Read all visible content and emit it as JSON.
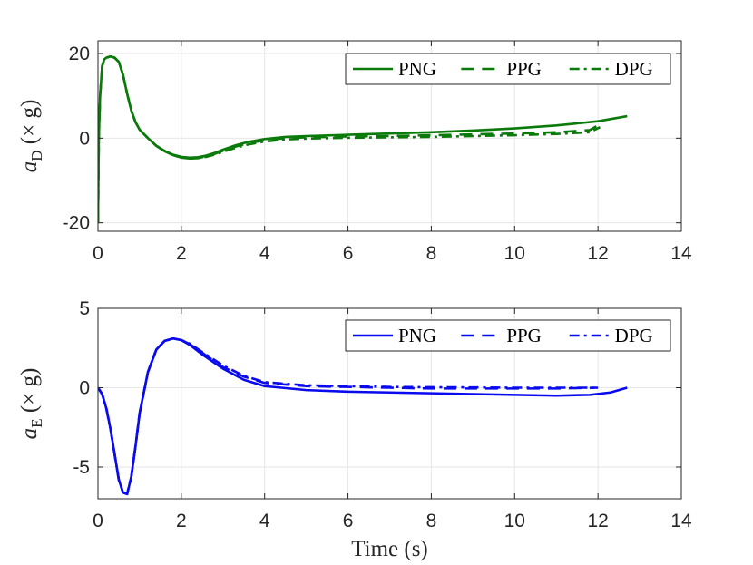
{
  "chart_data": [
    {
      "type": "line",
      "id": "top",
      "ylabel_main": "a",
      "ylabel_sub": "D",
      "ylabel_unit": "(× g)",
      "xlabel": "",
      "xlim": [
        0,
        14
      ],
      "ylim": [
        -22,
        23
      ],
      "xticks": [
        0,
        2,
        4,
        6,
        8,
        10,
        12,
        14
      ],
      "yticks": [
        -20,
        0,
        20
      ],
      "ytick_labels": [
        "-20",
        "0",
        "20"
      ],
      "grid": true,
      "legend_position": "top-right",
      "color": "#0a7a0a",
      "series": [
        {
          "name": "PNG",
          "style": "solid",
          "x": [
            0,
            0.02,
            0.05,
            0.1,
            0.15,
            0.2,
            0.3,
            0.4,
            0.5,
            0.6,
            0.7,
            0.8,
            0.9,
            1.0,
            1.2,
            1.4,
            1.6,
            1.8,
            2.0,
            2.2,
            2.4,
            2.6,
            2.8,
            3.0,
            3.3,
            3.6,
            4.0,
            4.5,
            5.0,
            6.0,
            7.0,
            8.0,
            9.0,
            10.0,
            11.0,
            12.0,
            12.7
          ],
          "y": [
            -20,
            0,
            10,
            17,
            18.6,
            19,
            19.3,
            19,
            18,
            15,
            10.5,
            6.5,
            3.8,
            2,
            0,
            -1.8,
            -3,
            -3.9,
            -4.4,
            -4.6,
            -4.5,
            -4.1,
            -3.5,
            -2.7,
            -1.7,
            -0.9,
            -0.2,
            0.3,
            0.5,
            0.8,
            1.1,
            1.4,
            1.8,
            2.3,
            3,
            4,
            5.2
          ]
        },
        {
          "name": "PPG",
          "style": "dashed",
          "x": [
            0,
            0.02,
            0.05,
            0.1,
            0.15,
            0.2,
            0.3,
            0.4,
            0.5,
            0.6,
            0.7,
            0.8,
            0.9,
            1.0,
            1.2,
            1.4,
            1.6,
            1.8,
            2.0,
            2.2,
            2.4,
            2.6,
            2.8,
            3.0,
            3.3,
            3.6,
            4.0,
            4.5,
            5.0,
            6.0,
            7.0,
            8.0,
            9.0,
            10.0,
            11.0,
            11.8,
            12.1
          ],
          "y": [
            -20,
            0,
            10,
            17,
            18.6,
            19,
            19.3,
            19,
            18,
            15,
            10.5,
            6.5,
            3.8,
            2,
            0,
            -1.8,
            -3.1,
            -4,
            -4.6,
            -4.8,
            -4.7,
            -4.3,
            -3.7,
            -3,
            -2,
            -1.2,
            -0.5,
            0,
            0.2,
            0.4,
            0.5,
            0.7,
            0.9,
            1.1,
            1.4,
            1.9,
            3.6
          ]
        },
        {
          "name": "DPG",
          "style": "dashdot",
          "x": [
            0,
            0.02,
            0.05,
            0.1,
            0.15,
            0.2,
            0.3,
            0.4,
            0.5,
            0.6,
            0.7,
            0.8,
            0.9,
            1.0,
            1.2,
            1.4,
            1.6,
            1.8,
            2.0,
            2.2,
            2.4,
            2.6,
            2.8,
            3.0,
            3.3,
            3.6,
            4.0,
            4.5,
            5.0,
            6.0,
            7.0,
            8.0,
            9.0,
            10.0,
            11.0,
            11.8,
            12.05
          ],
          "y": [
            -20,
            0,
            10,
            17,
            18.6,
            19,
            19.3,
            19,
            18,
            15,
            10.5,
            6.5,
            3.8,
            2,
            0,
            -1.8,
            -3.1,
            -4,
            -4.6,
            -4.8,
            -4.7,
            -4.4,
            -3.9,
            -3.2,
            -2.3,
            -1.5,
            -0.8,
            -0.3,
            -0.1,
            0.1,
            0.2,
            0.3,
            0.5,
            0.7,
            1,
            1.4,
            2.6
          ]
        }
      ]
    },
    {
      "type": "line",
      "id": "bottom",
      "ylabel_main": "a",
      "ylabel_sub": "E",
      "ylabel_unit": "(× g)",
      "xlabel": "Time (s)",
      "xlim": [
        0,
        14
      ],
      "ylim": [
        -7,
        5
      ],
      "xticks": [
        0,
        2,
        4,
        6,
        8,
        10,
        12,
        14
      ],
      "yticks": [
        -5,
        0,
        5
      ],
      "ytick_labels": [
        "-5",
        "0",
        "5"
      ],
      "grid": true,
      "legend_position": "top-right",
      "color": "#0a0aee",
      "series": [
        {
          "name": "PNG",
          "style": "solid",
          "x": [
            0,
            0.1,
            0.2,
            0.3,
            0.4,
            0.5,
            0.6,
            0.7,
            0.8,
            0.9,
            1.0,
            1.2,
            1.4,
            1.6,
            1.8,
            2.0,
            2.2,
            2.5,
            3.0,
            3.5,
            4.0,
            5.0,
            6.0,
            7.0,
            8.0,
            9.0,
            10.0,
            11.0,
            11.8,
            12.3,
            12.7
          ],
          "y": [
            0,
            -0.4,
            -1.3,
            -2.6,
            -4.2,
            -5.8,
            -6.6,
            -6.7,
            -5.6,
            -3.7,
            -1.6,
            1,
            2.4,
            2.95,
            3.1,
            3,
            2.7,
            2.1,
            1.2,
            0.5,
            0.1,
            -0.15,
            -0.25,
            -0.3,
            -0.35,
            -0.4,
            -0.45,
            -0.5,
            -0.45,
            -0.3,
            0
          ]
        },
        {
          "name": "PPG",
          "style": "dashed",
          "x": [
            0,
            0.1,
            0.2,
            0.3,
            0.4,
            0.5,
            0.6,
            0.7,
            0.8,
            0.9,
            1.0,
            1.2,
            1.4,
            1.6,
            1.8,
            2.0,
            2.2,
            2.5,
            3.0,
            3.5,
            4.0,
            5.0,
            6.0,
            7.0,
            8.0,
            9.0,
            10.0,
            11.0,
            12.0
          ],
          "y": [
            0,
            -0.4,
            -1.3,
            -2.6,
            -4.2,
            -5.8,
            -6.6,
            -6.7,
            -5.6,
            -3.7,
            -1.6,
            1,
            2.4,
            2.95,
            3.1,
            3,
            2.75,
            2.2,
            1.3,
            0.7,
            0.3,
            0.1,
            0.05,
            0,
            -0.05,
            -0.05,
            -0.05,
            -0.05,
            0
          ]
        },
        {
          "name": "DPG",
          "style": "dashdot",
          "x": [
            0,
            0.1,
            0.2,
            0.3,
            0.4,
            0.5,
            0.6,
            0.7,
            0.8,
            0.9,
            1.0,
            1.2,
            1.4,
            1.6,
            1.8,
            2.0,
            2.2,
            2.5,
            3.0,
            3.5,
            4.0,
            5.0,
            6.0,
            7.0,
            8.0,
            9.0,
            10.0,
            11.0,
            12.0
          ],
          "y": [
            0,
            -0.4,
            -1.3,
            -2.6,
            -4.2,
            -5.8,
            -6.6,
            -6.7,
            -5.6,
            -3.7,
            -1.6,
            1,
            2.4,
            2.95,
            3.1,
            3,
            2.78,
            2.25,
            1.4,
            0.75,
            0.35,
            0.15,
            0.1,
            0.05,
            0.03,
            0.02,
            0,
            0,
            0
          ]
        }
      ]
    }
  ]
}
